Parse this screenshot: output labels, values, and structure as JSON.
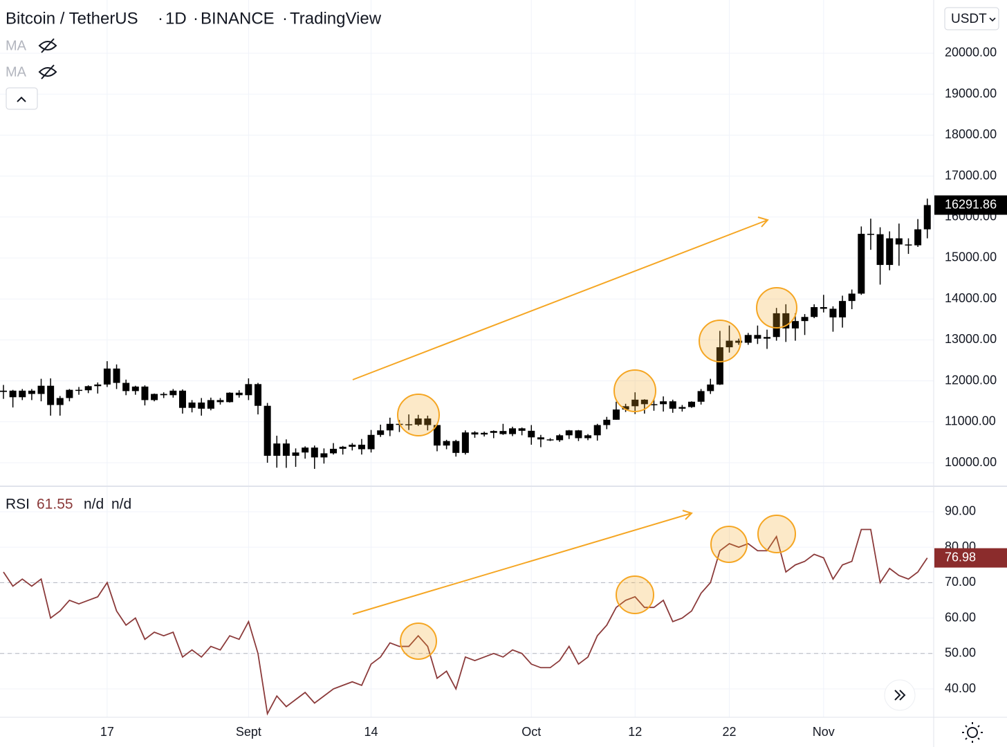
{
  "chart_data": [
    {
      "type": "candlestick",
      "title": "Bitcoin / TetherUS",
      "interval": "1D",
      "exchange": "BINANCE",
      "source": "TradingView",
      "indicators": [
        "MA",
        "MA"
      ],
      "currency": "USDT",
      "last_value": 16291.86,
      "color": "#000000",
      "grid": true,
      "categories": [
        null,
        null,
        null,
        null,
        null,
        null,
        null,
        null,
        null,
        null,
        null,
        "17",
        null,
        null,
        null,
        null,
        null,
        null,
        null,
        null,
        null,
        null,
        null,
        null,
        null,
        null,
        "Sept",
        null,
        null,
        null,
        null,
        null,
        null,
        null,
        null,
        null,
        null,
        null,
        null,
        "14",
        null,
        null,
        null,
        null,
        null,
        null,
        null,
        null,
        null,
        null,
        null,
        null,
        null,
        null,
        null,
        null,
        "Oct",
        null,
        null,
        null,
        null,
        null,
        null,
        null,
        null,
        null,
        null,
        "12",
        null,
        null,
        null,
        null,
        null,
        null,
        null,
        null,
        null,
        "22",
        null,
        null,
        null,
        null,
        null,
        null,
        null,
        null,
        null,
        "Nov",
        null,
        null,
        null,
        null,
        null,
        null,
        null,
        null,
        null,
        null,
        null
      ],
      "open": [
        11730,
        11760,
        11600,
        11760,
        11680,
        11880,
        11410,
        11580,
        11780,
        11770,
        11870,
        11910,
        12300,
        11950,
        11750,
        11860,
        11530,
        11680,
        11650,
        11760,
        11340,
        11470,
        11320,
        11530,
        11480,
        11710,
        11650,
        11920,
        11390,
        10170,
        10470,
        10170,
        10250,
        10370,
        10130,
        10230,
        10340,
        10390,
        10440,
        10330,
        10680,
        10790,
        10950,
        10940,
        10930,
        11080,
        10920,
        10420,
        10530,
        10240,
        10740,
        10690,
        10730,
        10775,
        10700,
        10840,
        10780,
        10620,
        10570,
        10550,
        10670,
        10790,
        10600,
        10670,
        10920,
        11050,
        11300,
        11380,
        11540,
        11430,
        11430,
        11500,
        11320,
        11360,
        11490,
        11750,
        11910,
        12820,
        12980,
        12930,
        13120,
        13030,
        13070,
        13650,
        13280,
        13460,
        13560,
        13800,
        13760,
        13550,
        13950,
        14130,
        15590,
        15580,
        14830,
        15480,
        15330,
        15310,
        15700
      ],
      "high": [
        11900,
        11780,
        11800,
        11800,
        12050,
        12060,
        11630,
        11800,
        11850,
        11890,
        11960,
        12480,
        12400,
        12030,
        11880,
        11890,
        11690,
        11720,
        11800,
        11790,
        11530,
        11580,
        11590,
        11580,
        11720,
        11770,
        12060,
        11950,
        11460,
        10660,
        10570,
        10350,
        10400,
        10420,
        10350,
        10480,
        10410,
        10480,
        10580,
        10800,
        10930,
        11100,
        11040,
        11180,
        11170,
        11150,
        10930,
        10560,
        10560,
        10790,
        10770,
        10760,
        10790,
        10950,
        10880,
        10860,
        10920,
        10680,
        10600,
        10700,
        10800,
        10800,
        10700,
        10950,
        11120,
        11490,
        11440,
        11720,
        11550,
        11550,
        11620,
        11540,
        11410,
        11500,
        11800,
        12050,
        13220,
        13350,
        13030,
        13170,
        13350,
        13250,
        13780,
        13870,
        13650,
        13630,
        13870,
        14100,
        13820,
        14080,
        14230,
        15770,
        15960,
        15750,
        15650,
        15840,
        15480,
        15950,
        16450
      ],
      "low": [
        11560,
        11350,
        11530,
        11530,
        11500,
        11150,
        11150,
        11500,
        11660,
        11700,
        11690,
        11850,
        11800,
        11650,
        11660,
        11400,
        11500,
        11580,
        11590,
        11200,
        11230,
        11150,
        11280,
        11420,
        11470,
        11590,
        11530,
        11180,
        10000,
        9880,
        9875,
        9900,
        10100,
        9850,
        9980,
        10200,
        10200,
        10300,
        10200,
        10250,
        10630,
        10650,
        10750,
        10800,
        10900,
        10790,
        10280,
        10330,
        10150,
        10200,
        10610,
        10640,
        10600,
        10680,
        10650,
        10670,
        10440,
        10380,
        10530,
        10510,
        10580,
        10530,
        10550,
        10540,
        10820,
        11050,
        11240,
        11190,
        11200,
        11270,
        11250,
        11220,
        11250,
        11340,
        11420,
        11680,
        11900,
        12690,
        12880,
        12880,
        12900,
        12780,
        12980,
        12950,
        12980,
        13120,
        13530,
        13670,
        13200,
        13300,
        13750,
        14100,
        15200,
        14350,
        14700,
        14810,
        15100,
        15270,
        15480
      ],
      "close": [
        11760,
        11600,
        11760,
        11680,
        11880,
        11410,
        11580,
        11780,
        11770,
        11870,
        11910,
        12300,
        11950,
        11750,
        11860,
        11530,
        11680,
        11650,
        11760,
        11340,
        11470,
        11320,
        11530,
        11480,
        11710,
        11650,
        11920,
        11390,
        10170,
        10470,
        10170,
        10250,
        10370,
        10130,
        10230,
        10340,
        10390,
        10440,
        10330,
        10680,
        10790,
        10950,
        10940,
        10930,
        11080,
        10920,
        10420,
        10530,
        10240,
        10740,
        10690,
        10730,
        10775,
        10700,
        10840,
        10780,
        10620,
        10570,
        10550,
        10670,
        10790,
        10600,
        10670,
        10920,
        11050,
        11300,
        11380,
        11540,
        11430,
        11430,
        11500,
        11320,
        11360,
        11490,
        11750,
        11910,
        12820,
        12980,
        12930,
        13120,
        13030,
        13070,
        13650,
        13280,
        13460,
        13560,
        13800,
        13760,
        13550,
        13950,
        14130,
        15590,
        15580,
        14830,
        15480,
        15330,
        15310,
        15700,
        16291.86
      ],
      "ylim": [
        9426,
        21300
      ],
      "yticks": [
        {
          "value": 10000,
          "label": "10000.00"
        },
        {
          "value": 11000,
          "label": "11000.00"
        },
        {
          "value": 12000,
          "label": "12000.00"
        },
        {
          "value": 13000,
          "label": "13000.00"
        },
        {
          "value": 14000,
          "label": "14000.00"
        },
        {
          "value": 15000,
          "label": "15000.00"
        },
        {
          "value": 16000,
          "label": "16000.00"
        },
        {
          "value": 17000,
          "label": "17000.00"
        },
        {
          "value": 18000,
          "label": "18000.00"
        },
        {
          "value": 19000,
          "label": "19000.00"
        },
        {
          "value": 20000,
          "label": "20000.00"
        }
      ]
    },
    {
      "type": "line",
      "indicator_values": [
        61.55,
        "n/d",
        "n/d"
      ],
      "last_value": 76.98,
      "grid": true,
      "bands": [
        70,
        50
      ],
      "series": [
        {
          "name": "RSI",
          "color": "#8b3a3a",
          "values": [
            73,
            69,
            71,
            69,
            71,
            60,
            62,
            65,
            64,
            65,
            66,
            70,
            62,
            58,
            60,
            54,
            56,
            55,
            56,
            49,
            51,
            49,
            52,
            51,
            55,
            54,
            59,
            50,
            33,
            38,
            35,
            37,
            39,
            36,
            38,
            40,
            41,
            42,
            41,
            47,
            49,
            53,
            52,
            52,
            55,
            52,
            43,
            45,
            40,
            49,
            48,
            49,
            50,
            49,
            51,
            50,
            47,
            46,
            46,
            48,
            52,
            47,
            49,
            55,
            58,
            63,
            65,
            66,
            63,
            63,
            65,
            59,
            60,
            62,
            67,
            70,
            79,
            81,
            80,
            81,
            79,
            79,
            83,
            73,
            75,
            76,
            78,
            77,
            71,
            75,
            76,
            85,
            85,
            70,
            74,
            72,
            71,
            73,
            76.98
          ]
        }
      ],
      "ylim": [
        32,
        97.2
      ],
      "yticks": [
        {
          "value": 40,
          "label": "40.00"
        },
        {
          "value": 50,
          "label": "50.00"
        },
        {
          "value": 60,
          "label": "60.00"
        },
        {
          "value": 70,
          "label": "70.00"
        },
        {
          "value": 80,
          "label": "80.00"
        },
        {
          "value": 90,
          "label": "90.00"
        }
      ]
    }
  ]
}
